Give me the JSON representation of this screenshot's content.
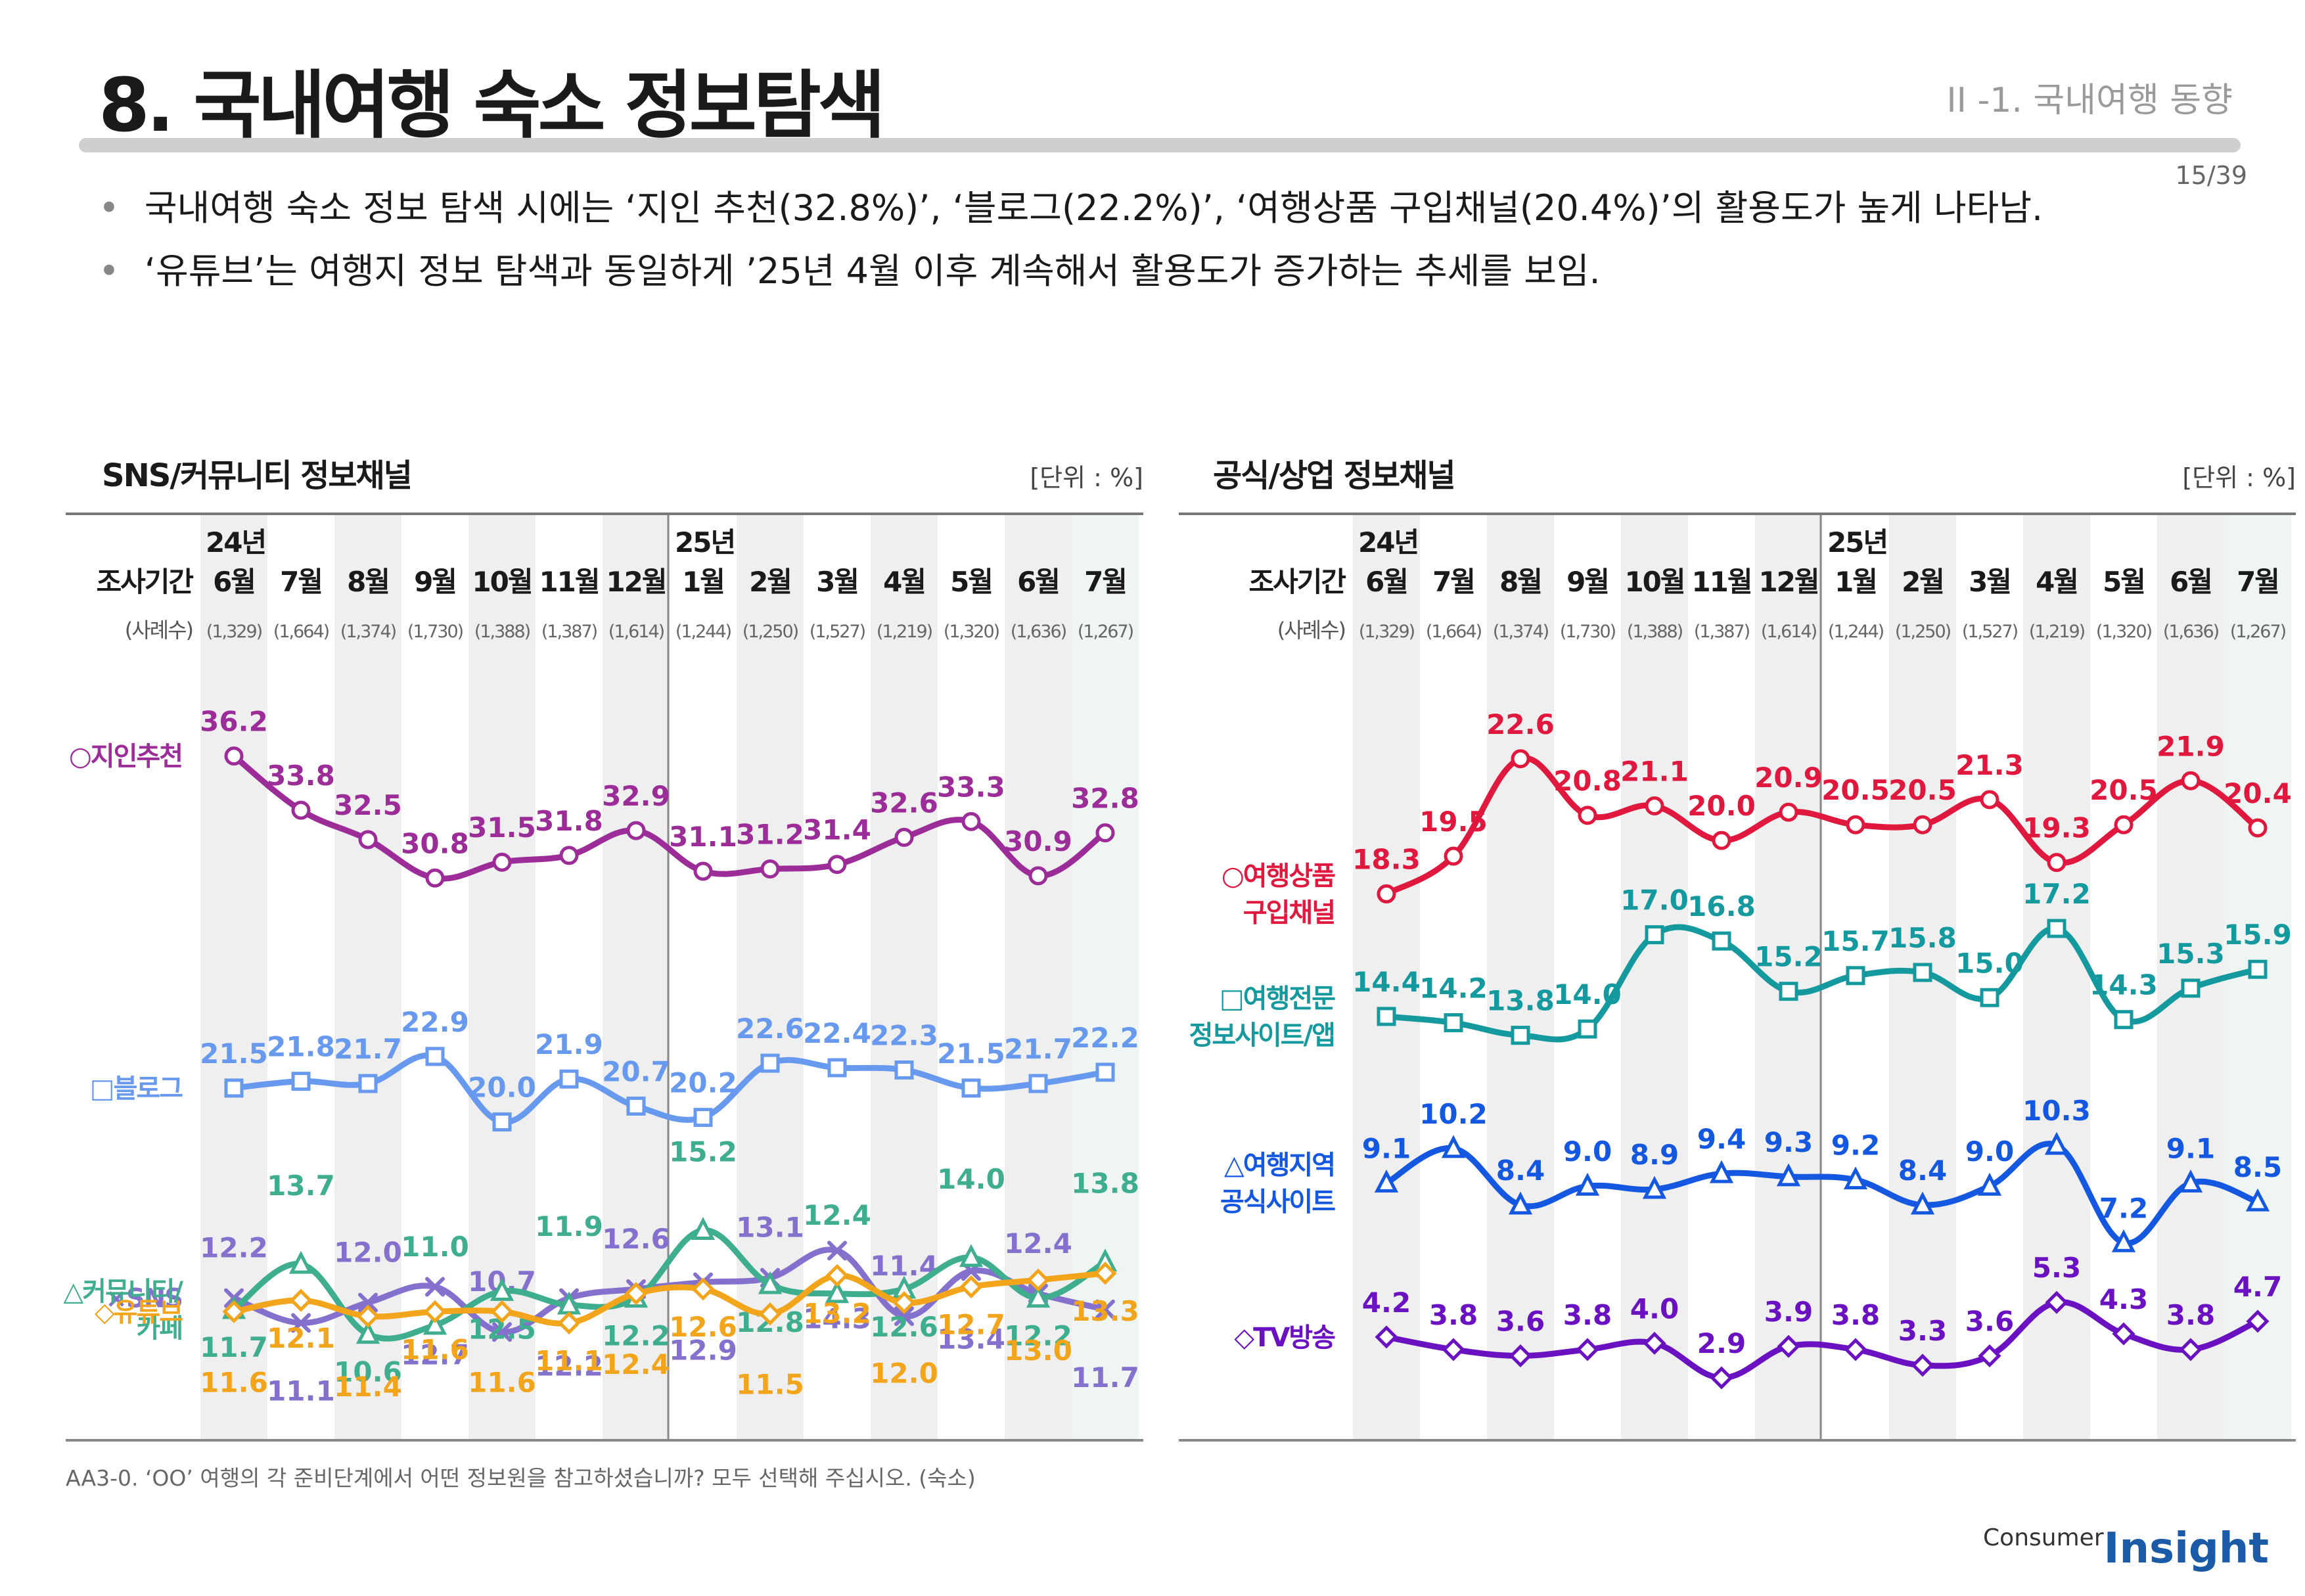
{
  "header": {
    "title": "8. 국내여행 숙소 정보탐색",
    "section": "II -1. 국내여행 동향",
    "page": "15/39"
  },
  "bullets": [
    "국내여행 숙소 정보 탐색 시에는 ‘지인 추천(32.8%)’, ‘블로그(22.2%)’, ‘여행상품 구입채널(20.4%)’의 활용도가 높게 나타남.",
    "‘유튜브’는 여행지 정보 탐색과 동일하게 ’25년 4월 이후 계속해서 활용도가 증가하는 추세를 보임."
  ],
  "bullet_mark": "•",
  "footnote": "AA3-0. ‘OO’ 여행의 각 준비단계에서 어떤 정보원을 참고하셨습니까? 모두 선택해 주십시오. (숙소)",
  "logo": {
    "line1": "Consumer",
    "line2": "Insight"
  },
  "colors": {
    "purple": "#9b2c98",
    "blue": "#6799ee",
    "violet": "#8470cd",
    "green": "#3fae8e",
    "orange": "#f2a41a",
    "red": "#e0183e",
    "teal": "#14999e",
    "royal": "#1457e0",
    "indigo": "#6a12c2",
    "shade": "#efefef",
    "shade_last": "#eef5f3"
  },
  "chart_data": [
    {
      "type": "line",
      "title": "SNS/커뮤니티 정보채널",
      "unit": "[단위 : %]",
      "period_label": "조사기간",
      "sample_label": "(사례수)",
      "year_marks": [
        {
          "index": 0,
          "label": "24년"
        },
        {
          "index": 7,
          "label": "25년"
        }
      ],
      "categories": [
        "6월",
        "7월",
        "8월",
        "9월",
        "10월",
        "11월",
        "12월",
        "1월",
        "2월",
        "3월",
        "4월",
        "5월",
        "6월",
        "7월"
      ],
      "samples": [
        "(1,329)",
        "(1,664)",
        "(1,374)",
        "(1,730)",
        "(1,388)",
        "(1,387)",
        "(1,614)",
        "(1,244)",
        "(1,250)",
        "(1,527)",
        "(1,219)",
        "(1,320)",
        "(1,636)",
        "(1,267)"
      ],
      "ylim": [
        8,
        40
      ],
      "series": [
        {
          "name": "○지인추천",
          "marker": "circle",
          "color": "#9b2c98",
          "label_pos": "above",
          "values": [
            36.2,
            33.8,
            32.5,
            30.8,
            31.5,
            31.8,
            32.9,
            31.1,
            31.2,
            31.4,
            32.6,
            33.3,
            30.9,
            32.8
          ],
          "labels": [
            "36.2",
            "33.8",
            "32.5",
            "30.8",
            "31.5",
            "31.8",
            "32.9",
            "31.1",
            "31.2",
            "31.4",
            "32.6",
            "33.3",
            "30.9",
            "32.8"
          ]
        },
        {
          "name": "□블로그",
          "marker": "square",
          "color": "#6799ee",
          "label_pos": "above",
          "values": [
            21.5,
            21.8,
            21.7,
            22.9,
            20.0,
            21.9,
            20.7,
            20.2,
            22.6,
            22.4,
            22.3,
            21.5,
            21.7,
            22.2
          ],
          "labels": [
            "21.5",
            "21.8",
            "21.7",
            "22.9",
            "20.0",
            "21.9",
            "20.7",
            "20.2",
            "22.6",
            "22.4",
            "22.3",
            "21.5",
            "21.7",
            "22.2"
          ]
        },
        {
          "name": "×SNS",
          "marker": "x",
          "color": "#8470cd",
          "label_pos": "alt_above_below",
          "values": [
            12.2,
            11.1,
            12.0,
            12.7,
            10.7,
            12.2,
            12.6,
            12.9,
            13.1,
            14.3,
            11.4,
            13.4,
            12.4,
            11.7
          ],
          "labels": [
            "12.2",
            "11.1",
            "12.0",
            "12.7",
            "10.7",
            "12.2",
            "12.6",
            "12.9",
            "13.1",
            "14.3",
            "11.4",
            "13.4",
            "12.4",
            "11.7"
          ]
        },
        {
          "name": "△커뮤니티/카페",
          "marker": "triangle",
          "color": "#3fae8e",
          "label_pos": "mixed",
          "values": [
            11.7,
            13.7,
            10.6,
            11.0,
            12.5,
            11.9,
            12.2,
            15.2,
            12.8,
            12.4,
            12.6,
            14.0,
            12.2,
            13.8
          ],
          "labels": [
            "11.7",
            "13.7",
            "10.6",
            "11.0",
            "12.5",
            "11.9",
            "12.2",
            "15.2",
            "12.8",
            "12.4",
            "12.6",
            "14.0",
            "12.2",
            "13.8"
          ]
        },
        {
          "name": "◇유튜브",
          "marker": "diamond",
          "color": "#f2a41a",
          "label_pos": "mixed",
          "values": [
            11.6,
            12.1,
            11.4,
            11.6,
            11.6,
            11.1,
            12.4,
            12.6,
            11.5,
            13.2,
            12.0,
            12.7,
            13.0,
            13.3
          ],
          "labels": [
            "11.6",
            "12.1",
            "11.4",
            "11.6",
            "11.6",
            "11.1",
            "12.4",
            "12.6",
            "11.5",
            "13.2",
            "12.0",
            "12.7",
            "13.0",
            "13.3"
          ]
        }
      ]
    },
    {
      "type": "line",
      "title": "공식/상업 정보채널",
      "unit": "[단위 : %]",
      "period_label": "조사기간",
      "sample_label": "(사례수)",
      "year_marks": [
        {
          "index": 0,
          "label": "24년"
        },
        {
          "index": 7,
          "label": "25년"
        }
      ],
      "categories": [
        "6월",
        "7월",
        "8월",
        "9월",
        "10월",
        "11월",
        "12월",
        "1월",
        "2월",
        "3월",
        "4월",
        "5월",
        "6월",
        "7월"
      ],
      "samples": [
        "(1,329)",
        "(1,664)",
        "(1,374)",
        "(1,730)",
        "(1,388)",
        "(1,387)",
        "(1,614)",
        "(1,244)",
        "(1,250)",
        "(1,527)",
        "(1,219)",
        "(1,320)",
        "(1,636)",
        "(1,267)"
      ],
      "ylim": [
        2,
        25
      ],
      "series": [
        {
          "name": "○여행상품 구입채널",
          "marker": "circle",
          "color": "#e0183e",
          "label_pos": "above",
          "values": [
            18.3,
            19.5,
            22.6,
            20.8,
            21.1,
            20.0,
            20.9,
            20.5,
            20.5,
            21.3,
            19.3,
            20.5,
            21.9,
            20.4
          ],
          "labels": [
            "18.3",
            "19.5",
            "22.6",
            "20.8",
            "21.1",
            "20.0",
            "20.9",
            "20.5",
            "20.5",
            "21.3",
            "19.3",
            "20.5",
            "21.9",
            "20.4"
          ]
        },
        {
          "name": "□여행전문 정보사이트/앱",
          "marker": "square",
          "color": "#14999e",
          "label_pos": "above",
          "values": [
            14.4,
            14.2,
            13.8,
            14.0,
            17.0,
            16.8,
            15.2,
            15.7,
            15.8,
            15.0,
            17.2,
            14.3,
            15.3,
            15.9
          ],
          "labels": [
            "14.4",
            "14.2",
            "13.8",
            "14.0",
            "17.0",
            "16.8",
            "15.2",
            "15.7",
            "15.8",
            "15.0",
            "17.2",
            "14.3",
            "15.3",
            "15.9"
          ]
        },
        {
          "name": "△여행지역 공식사이트",
          "marker": "triangle",
          "color": "#1457e0",
          "label_pos": "above",
          "values": [
            9.1,
            10.2,
            8.4,
            9.0,
            8.9,
            9.4,
            9.3,
            9.2,
            8.4,
            9.0,
            10.3,
            7.2,
            9.1,
            8.5
          ],
          "labels": [
            "9.1",
            "10.2",
            "8.4",
            "9.0",
            "8.9",
            "9.4",
            "9.3",
            "9.2",
            "8.4",
            "9.0",
            "10.3",
            "7.2",
            "9.1",
            "8.5"
          ]
        },
        {
          "name": "◇TV방송",
          "marker": "diamond",
          "color": "#6a12c2",
          "label_pos": "above",
          "values": [
            4.2,
            3.8,
            3.6,
            3.8,
            4.0,
            2.9,
            3.9,
            3.8,
            3.3,
            3.6,
            5.3,
            4.3,
            3.8,
            4.7
          ],
          "labels": [
            "4.2",
            "3.8",
            "3.6",
            "3.8",
            "4.0",
            "2.9",
            "3.9",
            "3.8",
            "3.3",
            "3.6",
            "5.3",
            "4.3",
            "3.8",
            "4.7"
          ]
        }
      ]
    }
  ]
}
